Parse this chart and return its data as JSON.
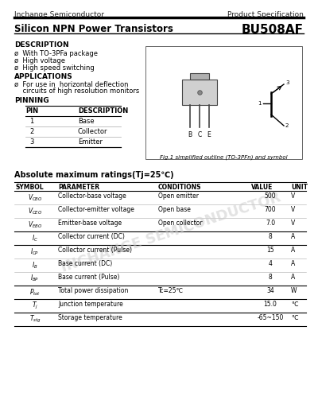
{
  "header_company": "Inchange Semiconductor",
  "header_right": "Product Specification",
  "title_left": "Silicon NPN Power Transistors",
  "title_right": "BU508AF",
  "description_title": "DESCRIPTION",
  "description_items": [
    "ø  With TO-3PFa package",
    "ø  High voltage",
    "ø  High speed switching"
  ],
  "applications_title": "APPLICATIONS",
  "applications_items": [
    "ø  For use in  horizontal deflection",
    "    circuits of high resolution monitors"
  ],
  "pinning_title": "PINNING",
  "pin_headers": [
    "PIN",
    "DESCRIPTION"
  ],
  "pin_rows": [
    [
      "1",
      "Base"
    ],
    [
      "2",
      "Collector"
    ],
    [
      "3",
      "Emitter"
    ]
  ],
  "fig_caption": "Fig.1 simplified outline (TO-3PFn) and symbol",
  "abs_max_title": "Absolute maximum ratings(Tj=25℃)",
  "table_headers": [
    "SYMBOL",
    "PARAMETER",
    "CONDITIONS",
    "VALUE",
    "UNIT"
  ],
  "table_rows": [
    [
      "Vcbo",
      "Collector-base voltage",
      "Open emitter",
      "500",
      "V"
    ],
    [
      "Vceo",
      "Collector-emitter voltage",
      "Open base",
      "700",
      "V"
    ],
    [
      "Vebo",
      "Emitter-base voltage",
      "Open collector",
      "7.0",
      "V"
    ],
    [
      "Ic",
      "Collector current (DC)",
      "",
      "8",
      "A"
    ],
    [
      "Icp",
      "Collector current (Pulse)",
      "",
      "15",
      "A"
    ],
    [
      "Ib",
      "Base current (DC)",
      "",
      "4",
      "A"
    ],
    [
      "Ibp",
      "Base current (Pulse)",
      "",
      "8",
      "A"
    ],
    [
      "Ptot",
      "Total power dissipation",
      "Tc=25℃",
      "34",
      "W"
    ],
    [
      "Tj",
      "Junction temperature",
      "",
      "15.0",
      "℃"
    ],
    [
      "Tstg",
      "Storage temperature",
      "",
      "-65~150",
      "℃"
    ]
  ],
  "table_syms": [
    "$V_{CBO}$",
    "$V_{CEO}$",
    "$V_{EBO}$",
    "$I_C$",
    "$I_{CP}$",
    "$I_B$",
    "$I_{BP}$",
    "$P_{tot}$",
    "$T_j$",
    "$T_{stg}$"
  ],
  "watermark": "INCHANGE SEMICONDUCTOR",
  "bg_color": "#ffffff",
  "text_color": "#000000",
  "line_color": "#000000",
  "table_line_color": "#888888"
}
